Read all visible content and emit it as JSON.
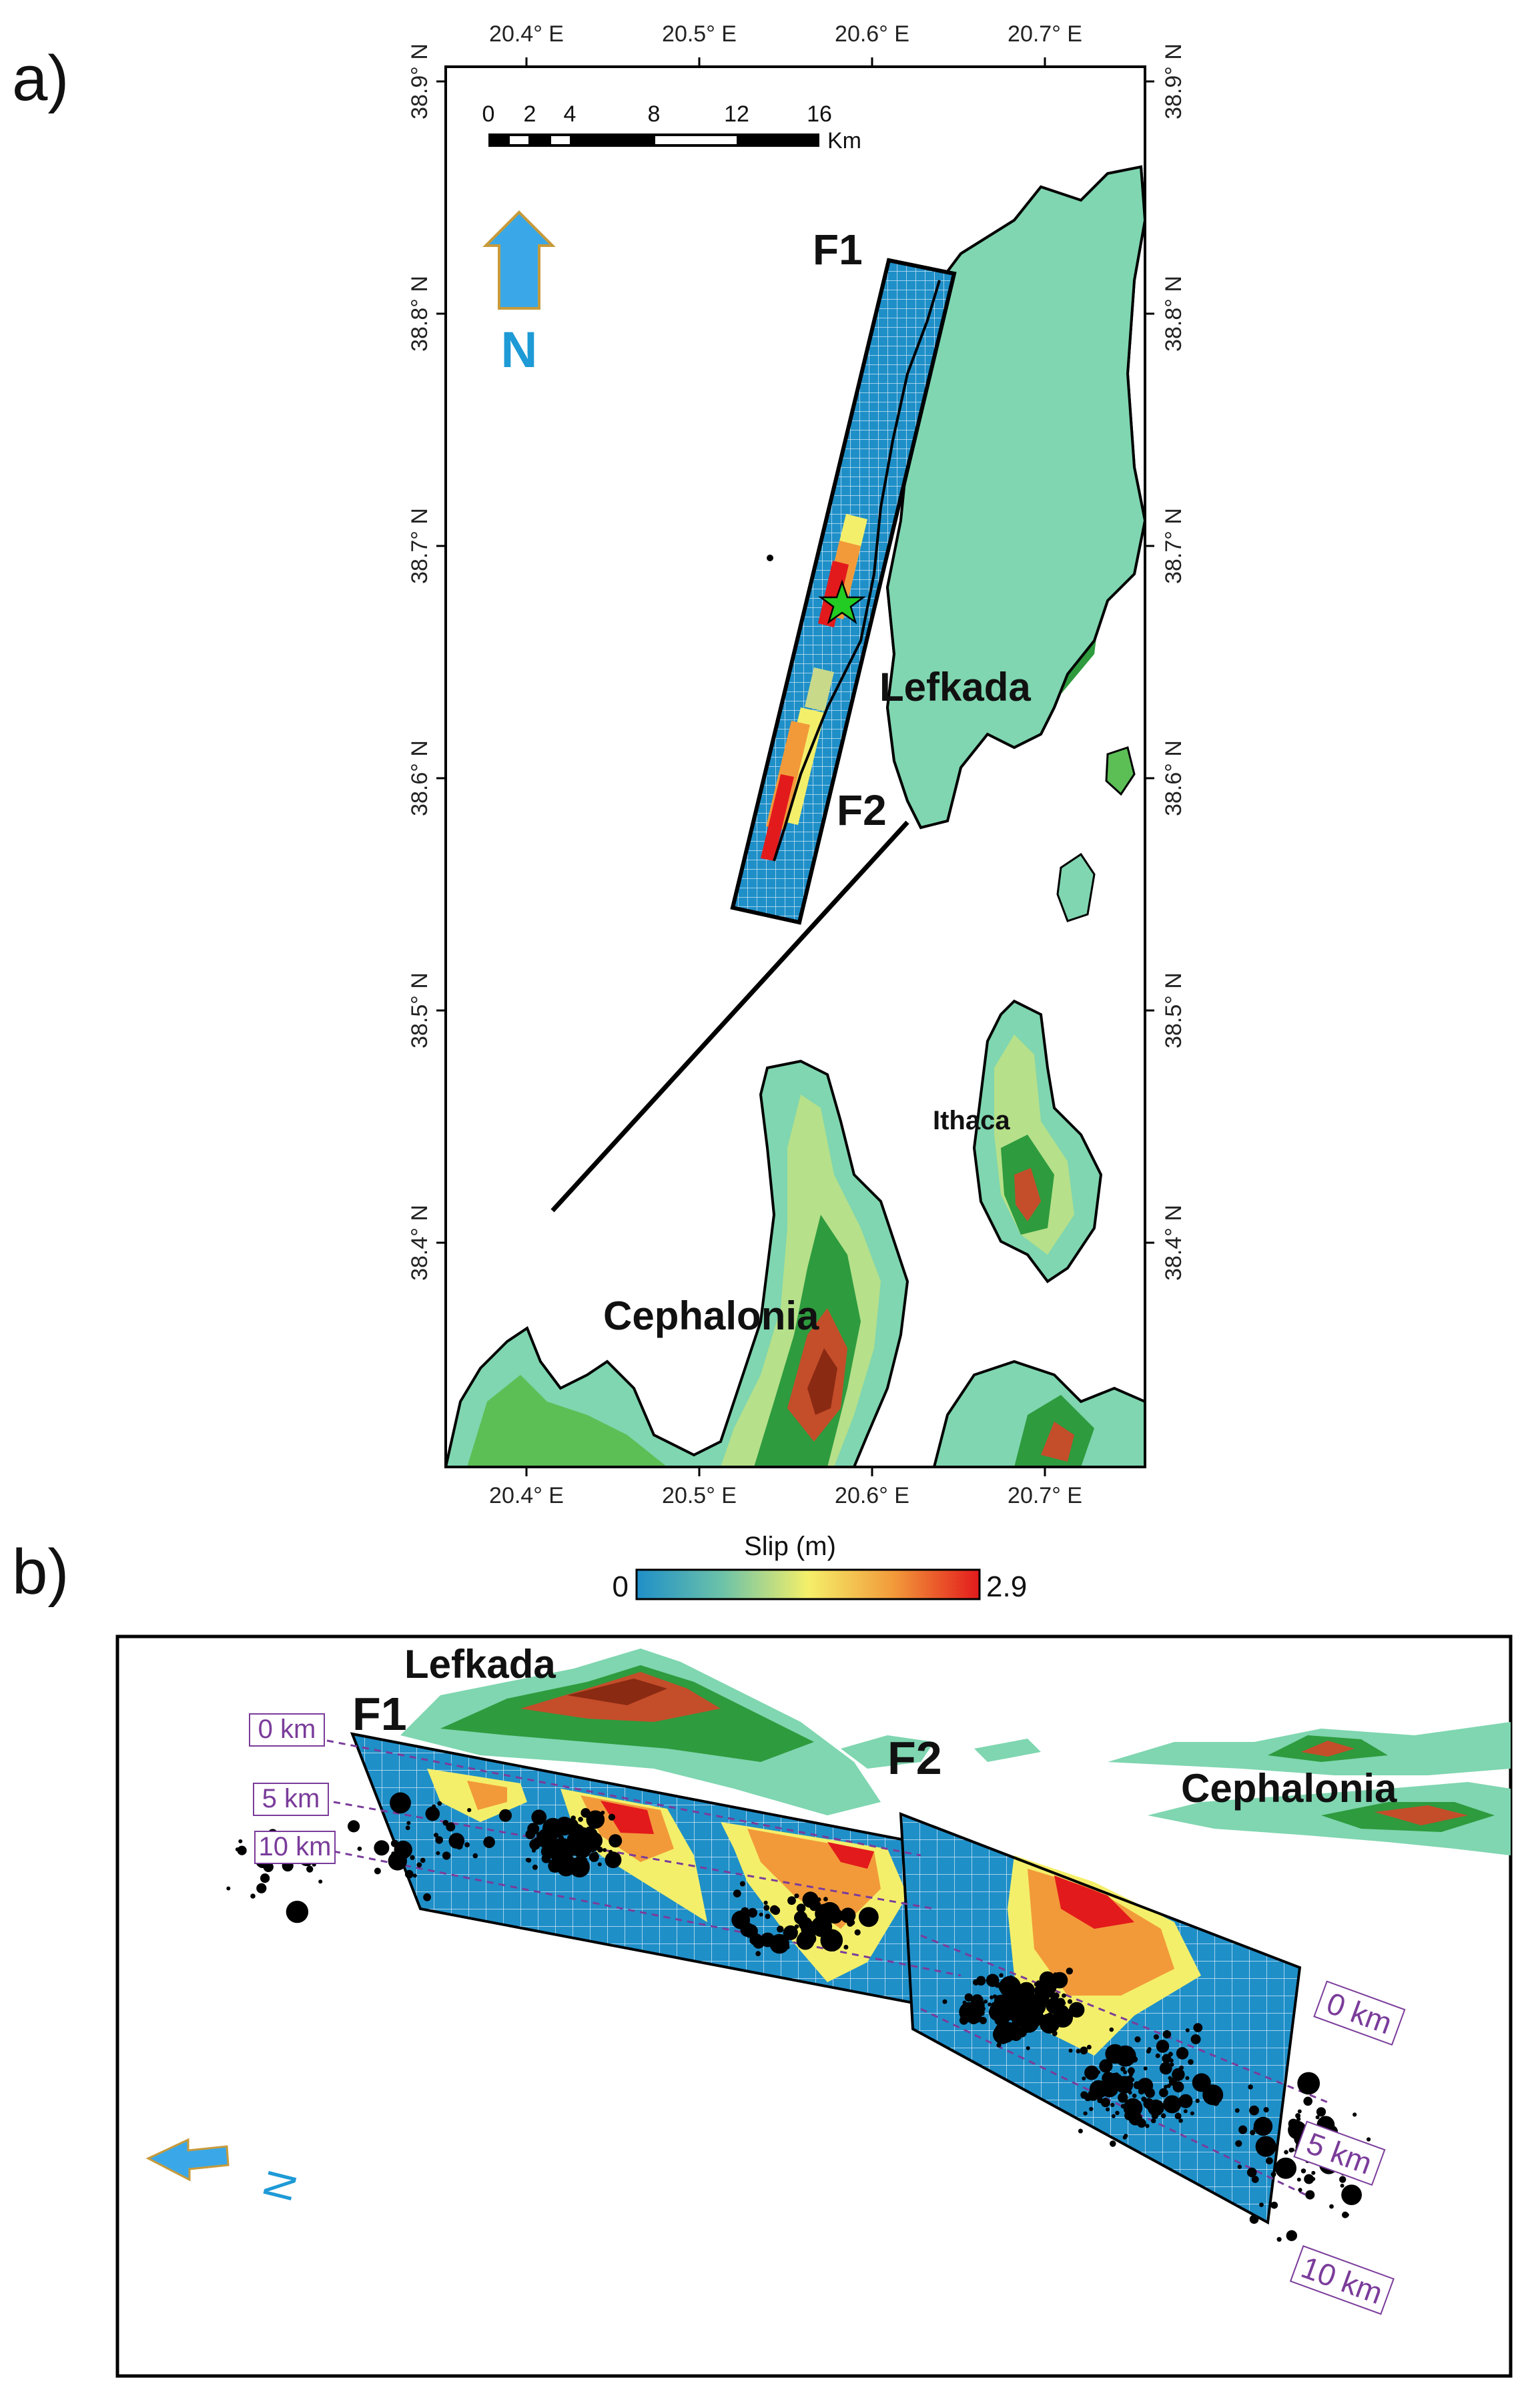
{
  "panel_a": {
    "label": "a)",
    "lon_ticks": [
      "20.4° E",
      "20.5° E",
      "20.6° E",
      "20.7° E"
    ],
    "lat_ticks": [
      "38.9° N",
      "38.8° N",
      "38.7° N",
      "38.6° N",
      "38.5° N",
      "38.4° N"
    ],
    "scalebar": {
      "values": [
        "0",
        "2",
        "4",
        "8",
        "12",
        "16"
      ],
      "unit": "Km"
    },
    "north_arrow": "N",
    "fault_labels": [
      "F1",
      "F2"
    ],
    "places": [
      "Lefkada",
      "Ithaca",
      "Cephalonia"
    ]
  },
  "colorbar": {
    "title": "Slip (m)",
    "min": "0",
    "max": "2.9",
    "colors": [
      "#1f8fc8",
      "#6cc2a8",
      "#f4ef6a",
      "#f29a3a",
      "#e31a1c"
    ]
  },
  "panel_b": {
    "label": "b)",
    "places": [
      "Lefkada",
      "Cephalonia"
    ],
    "fault_labels": [
      "F1",
      "F2"
    ],
    "depths_left": [
      "0 km",
      "5 km",
      "10 km"
    ],
    "depths_right": [
      "0 km",
      "5 km",
      "10 km"
    ],
    "north_arrow": "N"
  },
  "colors": {
    "fault_plane": "#1f8fc8",
    "slip_high": "#e31a1c",
    "slip_mid": "#f29a3a",
    "slip_low": "#f4ef6a",
    "land_low": "#7fd6b0",
    "land_mid": "#2e9b3e",
    "land_high": "#8a2a12",
    "north_arrow": "#3aa8e8",
    "depth_lines": "#7a3c9a",
    "epicenter": "#22cc22"
  }
}
